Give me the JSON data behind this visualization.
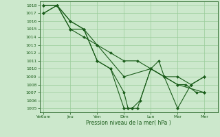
{
  "background_color": "#cce8cc",
  "grid_color": "#99cc99",
  "line_color": "#1a5c1a",
  "marker_color": "#1a5c1a",
  "xlabel": "Pression niveau de la mer( hPa )",
  "ylim": [
    1004.5,
    1018.5
  ],
  "yticks": [
    1005,
    1006,
    1007,
    1008,
    1009,
    1010,
    1011,
    1012,
    1013,
    1014,
    1015,
    1016,
    1017,
    1018
  ],
  "xtick_labels": [
    "Ve6am",
    "Jeu",
    "Ven",
    "Dim",
    "Lun",
    "Mar",
    "Mer"
  ],
  "xtick_positions": [
    0,
    1,
    2,
    3,
    4,
    5,
    6
  ],
  "series": [
    {
      "x": [
        0,
        0.5,
        1.0,
        1.5,
        2.0,
        2.5,
        3.0,
        3.15,
        3.3,
        3.5,
        4.0,
        4.3,
        4.5,
        5.0,
        5.5,
        6.0
      ],
      "y": [
        1018,
        1018,
        1016,
        1015,
        1011,
        1010,
        1007,
        1005,
        1005,
        1005,
        1010,
        1011,
        1009,
        1005,
        1008,
        1009
      ]
    },
    {
      "x": [
        0,
        0.5,
        1.0,
        1.5,
        2.0,
        2.5,
        3.0,
        3.3,
        3.6,
        4.0,
        4.5,
        5.0,
        5.3,
        5.7,
        6.0
      ],
      "y": [
        1018,
        1018,
        1015,
        1015,
        1011,
        1010,
        1005,
        1005,
        1006,
        1010,
        1009,
        1008,
        1008,
        1007,
        1007
      ]
    },
    {
      "x": [
        0,
        0.5,
        1.0,
        1.5,
        2.0,
        2.5,
        3.0,
        3.5,
        4.0,
        4.5,
        5.0,
        5.5,
        6.0
      ],
      "y": [
        1017,
        1018,
        1016,
        1015,
        1013,
        1012,
        1011,
        1011,
        1010,
        1009,
        1009,
        1008,
        1009
      ]
    },
    {
      "x": [
        0,
        0.5,
        1.0,
        1.5,
        2.0,
        3.0,
        4.0,
        5.0,
        6.0
      ],
      "y": [
        1017,
        1018,
        1015,
        1014,
        1013,
        1009,
        1010,
        1008,
        1007
      ]
    }
  ]
}
